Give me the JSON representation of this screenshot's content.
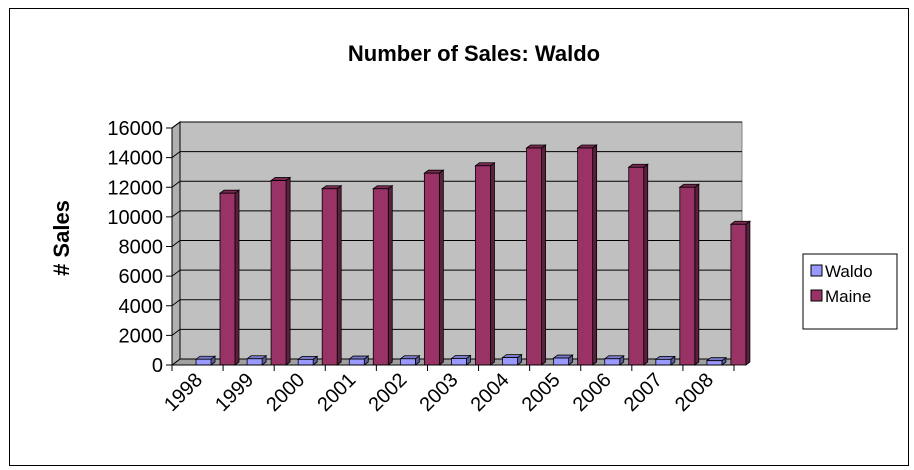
{
  "chart_data": {
    "type": "bar",
    "title": "Number of Sales: Waldo",
    "xlabel": "",
    "ylabel": "# Sales",
    "categories": [
      "1998",
      "1999",
      "2000",
      "2001",
      "2002",
      "2003",
      "2004",
      "2005",
      "2006",
      "2007",
      "2008"
    ],
    "series": [
      {
        "name": "Waldo",
        "values": [
          390,
          420,
          380,
          400,
          420,
          440,
          500,
          470,
          420,
          380,
          290
        ],
        "color": "#9999ff"
      },
      {
        "name": "Maine",
        "values": [
          11600,
          12450,
          11900,
          11900,
          12950,
          13450,
          14650,
          14650,
          13350,
          12000,
          9500
        ],
        "color": "#993366"
      }
    ],
    "ylim": [
      0,
      16000
    ],
    "yticks": [
      0,
      2000,
      4000,
      6000,
      8000,
      10000,
      12000,
      14000,
      16000
    ],
    "grid": true,
    "plot_background": "#c0c0c0",
    "legend_position": "right"
  }
}
